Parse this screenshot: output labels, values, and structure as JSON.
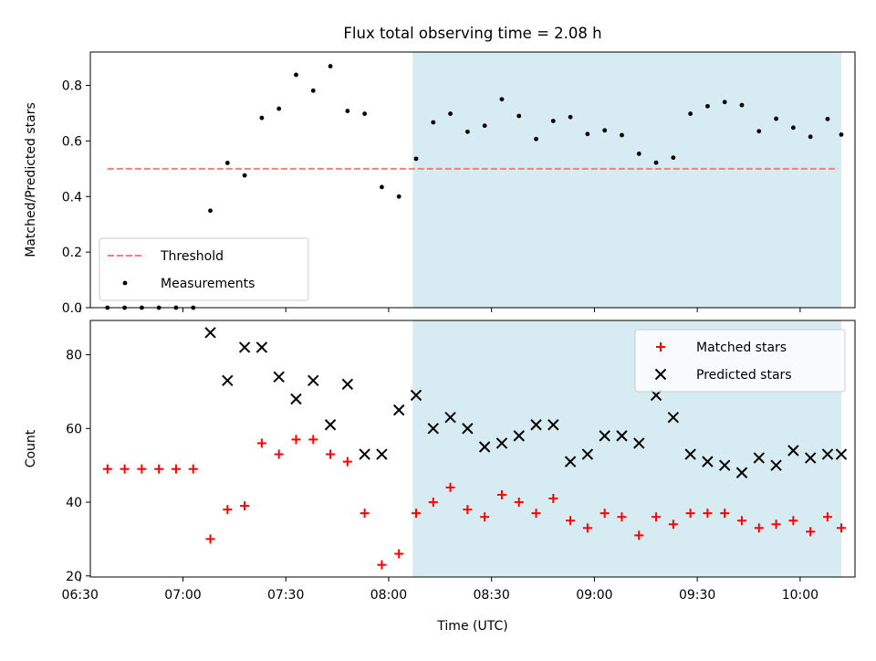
{
  "chart_data": {
    "title": "Flux total observing time = 2.08 h",
    "xlabel": "Time (UTC)",
    "x_tick_labels": [
      "06:30",
      "07:00",
      "07:30",
      "08:00",
      "08:30",
      "09:00",
      "09:30",
      "10:00"
    ],
    "x_tick_times": [
      "06:30",
      "07:00",
      "07:30",
      "08:00",
      "08:30",
      "09:00",
      "09:30",
      "10:00"
    ],
    "xlim": [
      "06:33",
      "10:16"
    ],
    "shaded_span": {
      "start": "08:07",
      "end": "10:12",
      "color": "#add8e6"
    },
    "times": [
      "06:38",
      "06:43",
      "06:48",
      "06:53",
      "06:58",
      "07:03",
      "07:08",
      "07:13",
      "07:18",
      "07:23",
      "07:28",
      "07:33",
      "07:38",
      "07:43",
      "07:48",
      "07:53",
      "07:58",
      "08:03",
      "08:08",
      "08:13",
      "08:18",
      "08:23",
      "08:28",
      "08:33",
      "08:38",
      "08:43",
      "08:48",
      "08:53",
      "08:58",
      "09:03",
      "09:08",
      "09:13",
      "09:18",
      "09:23",
      "09:28",
      "09:33",
      "09:38",
      "09:43",
      "09:48",
      "09:53",
      "09:58",
      "10:03",
      "10:08",
      "10:12"
    ],
    "panels": [
      {
        "type": "scatter",
        "ylabel": "Matched/Predicted stars",
        "ylim": [
          0,
          0.92
        ],
        "y_ticks": [
          0.0,
          0.2,
          0.4,
          0.6,
          0.8
        ],
        "y_tick_labels": [
          "0.0",
          "0.2",
          "0.4",
          "0.6",
          "0.8"
        ],
        "legend_position": "lower-left",
        "threshold": {
          "name": "Threshold",
          "value": 0.5,
          "start": "06:38",
          "end": "10:11",
          "color": "#f08080"
        },
        "series": [
          {
            "name": "Measurements",
            "marker": "dot",
            "color": "#000000",
            "values": [
              0.0,
              0.0,
              0.0,
              0.0,
              0.0,
              0.0,
              0.349,
              0.521,
              0.476,
              0.683,
              0.716,
              0.838,
              0.781,
              0.869,
              0.708,
              0.698,
              0.434,
              0.4,
              0.536,
              0.667,
              0.698,
              0.633,
              0.655,
              0.75,
              0.69,
              0.607,
              0.672,
              0.686,
              0.625,
              0.638,
              0.621,
              0.554,
              0.522,
              0.54,
              0.698,
              0.725,
              0.74,
              0.729,
              0.635,
              0.68,
              0.648,
              0.615,
              0.679,
              0.623
            ]
          }
        ]
      },
      {
        "type": "scatter",
        "ylabel": "Count",
        "ylim": [
          19.7,
          89.3
        ],
        "y_ticks": [
          20,
          40,
          60,
          80
        ],
        "y_tick_labels": [
          "20",
          "40",
          "60",
          "80"
        ],
        "legend_position": "upper-right",
        "series": [
          {
            "name": "Matched stars",
            "marker": "plus",
            "color": "#ff0000",
            "values": [
              49,
              49,
              49,
              49,
              49,
              49,
              30,
              38,
              39,
              56,
              53,
              57,
              57,
              53,
              51,
              37,
              23,
              26,
              37,
              40,
              44,
              38,
              36,
              42,
              40,
              37,
              41,
              35,
              33,
              37,
              36,
              31,
              36,
              34,
              37,
              37,
              37,
              35,
              33,
              34,
              35,
              32,
              36,
              33
            ]
          },
          {
            "name": "Predicted stars",
            "marker": "x",
            "color": "#000000",
            "values": [
              null,
              null,
              null,
              null,
              null,
              null,
              86,
              73,
              82,
              82,
              74,
              68,
              73,
              61,
              72,
              53,
              53,
              65,
              69,
              60,
              63,
              60,
              55,
              56,
              58,
              61,
              61,
              51,
              53,
              58,
              58,
              56,
              69,
              63,
              53,
              51,
              50,
              48,
              52,
              50,
              54,
              52,
              53,
              53
            ]
          }
        ]
      }
    ]
  }
}
